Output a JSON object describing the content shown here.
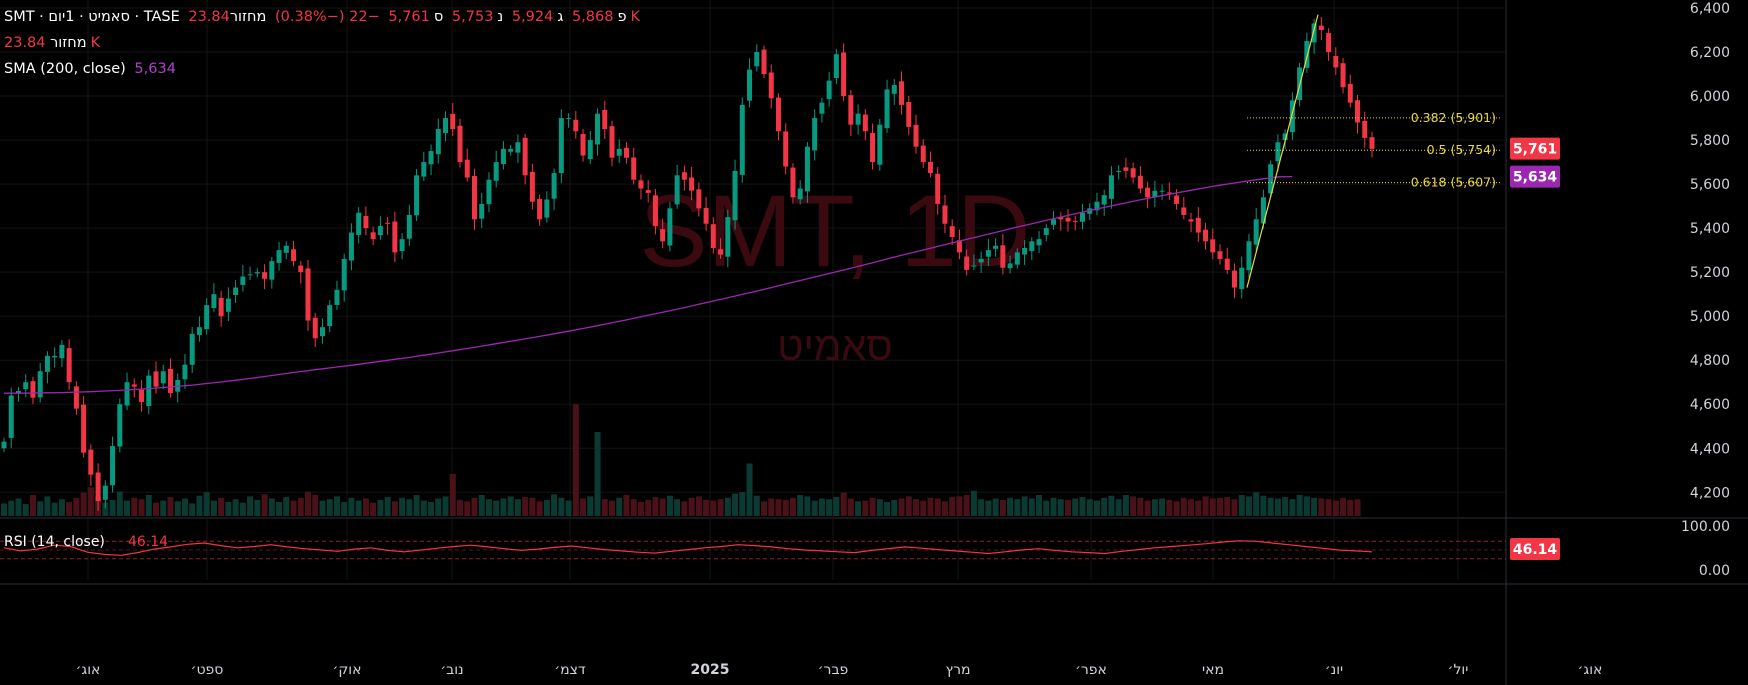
{
  "header": {
    "title": "SMT · סאמיט · 1יום · TASE",
    "open_label": "פ",
    "open_value": "5,868",
    "high_label": "ג",
    "high_value": "5,924",
    "low_label": "נ",
    "low_value": "5,753",
    "close_label": "ס",
    "close_value": "5,761",
    "change": "−22 (−0.38%)",
    "volume_label": "מחזור",
    "volume_value": "23.84K",
    "volume_row_label": "מחזור",
    "volume_row_value": "23.84K",
    "sma_label": "SMA (200, close)",
    "sma_value": "5,634"
  },
  "watermark": {
    "symbol": "SMT, 1D",
    "name": "סאמיט"
  },
  "rsi": {
    "label": "RSI (14, close)",
    "value": "46.14",
    "ticks": [
      "100.00",
      "0.00"
    ]
  },
  "colors": {
    "up": "#089981",
    "down": "#f23645",
    "sma": "#9c27b0",
    "fib": "#e9d93a",
    "rsi": "#f23645",
    "background": "#000000",
    "text": "#d1d4dc"
  },
  "chart_data": {
    "type": "candlestick",
    "y_axis": {
      "ticks": [
        "6,400",
        "6,200",
        "6,000",
        "5,800",
        "5,600",
        "5,400",
        "5,200",
        "5,000",
        "4,800",
        "4,600",
        "4,400",
        "4,200"
      ],
      "tick_values": [
        6400,
        6200,
        6000,
        5800,
        5600,
        5400,
        5200,
        5000,
        4800,
        4600,
        4400,
        4200
      ],
      "range": [
        4165,
        6400
      ]
    },
    "x_axis": {
      "labels": [
        "אוג׳",
        "ספט׳",
        "אוק׳",
        "נוב׳",
        "דצמ׳",
        "2025",
        "פבר׳",
        "מרץ",
        "אפר׳",
        "מאי",
        "יונ׳",
        "יול׳",
        "אוג׳"
      ],
      "bold": [
        false,
        false,
        false,
        false,
        false,
        true,
        false,
        false,
        false,
        false,
        false,
        false,
        false
      ]
    },
    "price_labels": [
      {
        "text": "5,761",
        "value": 5761,
        "color": "#f23645"
      },
      {
        "text": "5,634",
        "value": 5634,
        "color": "#9c27b0"
      }
    ],
    "fib_levels": [
      {
        "text": "0.382 (5,901)",
        "value": 5901
      },
      {
        "text": "0.5 (5,754)",
        "value": 5754
      },
      {
        "text": "0.618 (5,607)",
        "value": 5607
      }
    ],
    "fib_swing": {
      "low": 5130,
      "high": 6370
    },
    "closes": [
      4430,
      4640,
      4660,
      4700,
      4630,
      4750,
      4820,
      4820,
      4870,
      4700,
      4580,
      4380,
      4280,
      4160,
      4230,
      4410,
      4600,
      4700,
      4680,
      4610,
      4730,
      4680,
      4750,
      4650,
      4710,
      4780,
      4920,
      4950,
      5050,
      5100,
      5000,
      5080,
      5130,
      5180,
      5190,
      5200,
      5170,
      5250,
      5300,
      5320,
      5250,
      5200,
      4980,
      4900,
      4950,
      5050,
      5120,
      5260,
      5380,
      5470,
      5400,
      5350,
      5410,
      5420,
      5290,
      5350,
      5460,
      5640,
      5700,
      5750,
      5850,
      5900,
      5850,
      5700,
      5630,
      5440,
      5510,
      5620,
      5700,
      5760,
      5760,
      5790,
      5640,
      5520,
      5440,
      5530,
      5650,
      5900,
      5900,
      5840,
      5730,
      5800,
      5920,
      5850,
      5720,
      5760,
      5720,
      5620,
      5580,
      5560,
      5410,
      5340,
      5490,
      5640,
      5620,
      5570,
      5490,
      5420,
      5310,
      5280,
      5450,
      5660,
      5960,
      6120,
      6200,
      6100,
      5990,
      5840,
      5680,
      5540,
      5580,
      5770,
      5900,
      5970,
      6070,
      6190,
      6000,
      5870,
      5920,
      5840,
      5700,
      5870,
      6030,
      6050,
      5960,
      5860,
      5770,
      5700,
      5650,
      5510,
      5420,
      5360,
      5290,
      5210,
      5230,
      5260,
      5300,
      5320,
      5220,
      5240,
      5290,
      5310,
      5340,
      5350,
      5400,
      5440,
      5440,
      5430,
      5430,
      5470,
      5490,
      5520,
      5550,
      5640,
      5660,
      5660,
      5630,
      5580,
      5540,
      5570,
      5570,
      5560,
      5510,
      5460,
      5430,
      5380,
      5340,
      5290,
      5260,
      5210,
      5130,
      5220,
      5340,
      5440,
      5540,
      5690,
      5790,
      5830,
      5980,
      6130,
      6250,
      6330,
      6300,
      6200,
      6130,
      6040,
      5970,
      5880,
      5810,
      5760
    ],
    "sma200": [
      4650,
      4650,
      4651,
      4652,
      4653,
      4655,
      4657,
      4660,
      4663,
      4667,
      4671,
      4676,
      4681,
      4687,
      4694,
      4701,
      4709,
      4717,
      4726,
      4735,
      4744,
      4753,
      4761,
      4769,
      4777,
      4786,
      4795,
      4804,
      4813,
      4823,
      4833,
      4843,
      4853,
      4864,
      4875,
      4886,
      4897,
      4908,
      4920,
      4932,
      4944,
      4957,
      4970,
      4983,
      4997,
      5011,
      5025,
      5039,
      5054,
      5069,
      5084,
      5099,
      5114,
      5130,
      5146,
      5162,
      5178,
      5194,
      5210,
      5226,
      5243,
      5260,
      5277,
      5293,
      5309,
      5325,
      5341,
      5357,
      5373,
      5389,
      5405,
      5420,
      5435,
      5450,
      5465,
      5480,
      5494,
      5508,
      5522,
      5535,
      5548,
      5560,
      5572,
      5584,
      5595,
      5605,
      5615,
      5624,
      5633,
      5634
    ],
    "sma_start_index": 18,
    "volumes": [
      18,
      22,
      25,
      17,
      30,
      21,
      28,
      19,
      24,
      20,
      26,
      33,
      41,
      28,
      19,
      23,
      35,
      22,
      26,
      24,
      30,
      19,
      22,
      27,
      21,
      25,
      18,
      29,
      34,
      22,
      26,
      20,
      24,
      19,
      28,
      23,
      31,
      25,
      20,
      27,
      22,
      26,
      35,
      30,
      22,
      24,
      28,
      20,
      26,
      22,
      25,
      19,
      23,
      27,
      21,
      26,
      24,
      30,
      22,
      20,
      25,
      28,
      60,
      23,
      21,
      26,
      30,
      24,
      22,
      25,
      28,
      24,
      27,
      26,
      21,
      23,
      31,
      26,
      22,
      160,
      25,
      28,
      120,
      24,
      22,
      26,
      30,
      24,
      20,
      23,
      27,
      25,
      29,
      24,
      21,
      26,
      28,
      23,
      22,
      24,
      26,
      32,
      34,
      75,
      29,
      21,
      25,
      24,
      23,
      26,
      30,
      28,
      22,
      25,
      24,
      27,
      33,
      25,
      21,
      22,
      26,
      24,
      20,
      23,
      25,
      28,
      24,
      22,
      26,
      25,
      21,
      27,
      28,
      30,
      36,
      24,
      22,
      25,
      23,
      26,
      24,
      28,
      25,
      30,
      22,
      26,
      24,
      23,
      25,
      27,
      24,
      22,
      26,
      29,
      24,
      30,
      28,
      26,
      22,
      24,
      25,
      23,
      21,
      26,
      24,
      22,
      28,
      25,
      26,
      27,
      24,
      30,
      28,
      34,
      29,
      26,
      25,
      27,
      24,
      30,
      28,
      26,
      25,
      24,
      22,
      26,
      23,
      24
    ],
    "rsi_series": [
      55,
      48,
      52,
      61,
      58,
      45,
      40,
      38,
      44,
      52,
      57,
      63,
      66,
      60,
      55,
      58,
      62,
      57,
      53,
      50,
      47,
      52,
      55,
      49,
      46,
      50,
      54,
      58,
      61,
      57,
      53,
      49,
      52,
      56,
      59,
      55,
      51,
      48,
      45,
      43,
      47,
      51,
      55,
      58,
      62,
      60,
      57,
      53,
      50,
      48,
      46,
      44,
      49,
      53,
      57,
      54,
      51,
      48,
      45,
      42,
      46,
      50,
      53,
      49,
      46,
      44,
      42,
      47,
      51,
      55,
      58,
      61,
      64,
      68,
      71,
      70,
      66,
      62,
      58,
      54,
      50,
      48,
      46
    ]
  }
}
